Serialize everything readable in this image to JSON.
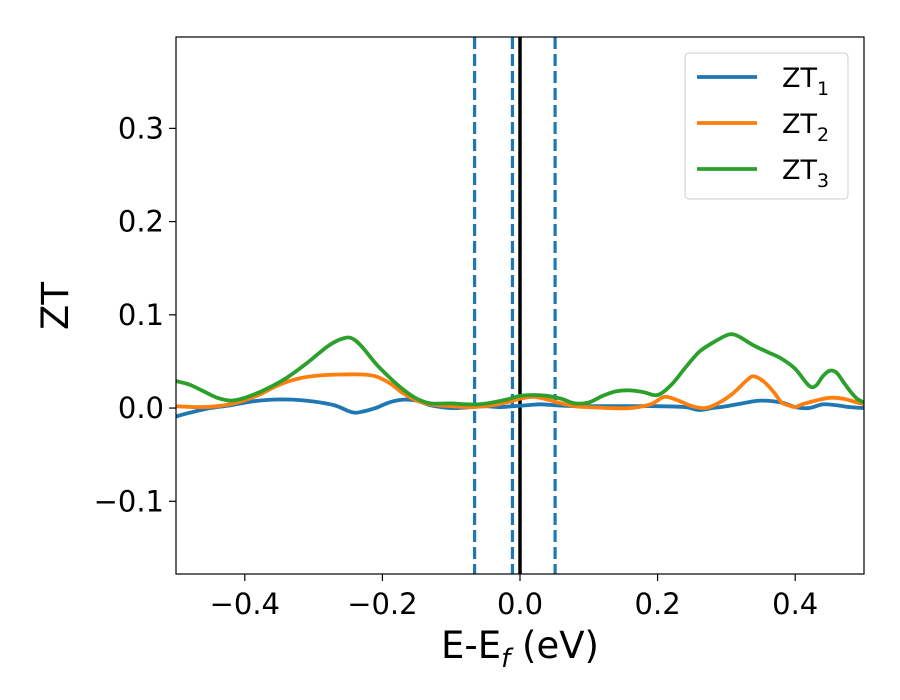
{
  "chart_data": {
    "type": "line",
    "title": "",
    "xlabel": "E-E",
    "xlabel_sub": "f",
    "xlabel_unit": " (eV)",
    "ylabel": "ZT",
    "xlim": [
      -0.5,
      0.5
    ],
    "ylim": [
      -0.178,
      0.398
    ],
    "xticks": [
      -0.4,
      -0.2,
      0.0,
      0.2,
      0.4
    ],
    "xtick_labels": [
      "−0.4",
      "−0.2",
      "0.0",
      "0.2",
      "0.4"
    ],
    "yticks": [
      -0.1,
      0.0,
      0.1,
      0.2,
      0.3
    ],
    "ytick_labels": [
      "−0.1",
      "0.0",
      "0.1",
      "0.2",
      "0.3"
    ],
    "grid": false,
    "legend_position": "top-right",
    "vlines": [
      {
        "x": -0.066,
        "color": "#1f77b4",
        "style": "dashed"
      },
      {
        "x": -0.011,
        "color": "#1f77b4",
        "style": "dashed"
      },
      {
        "x": 0.0,
        "color": "#000000",
        "style": "solid"
      },
      {
        "x": 0.051,
        "color": "#1f77b4",
        "style": "dashed"
      }
    ],
    "series": [
      {
        "name": "ZT",
        "sub": "1",
        "color": "#1f77b4",
        "points": [
          [
            -0.5,
            -0.009
          ],
          [
            -0.48,
            -0.005
          ],
          [
            -0.45,
            0.0
          ],
          [
            -0.42,
            0.003
          ],
          [
            -0.39,
            0.007
          ],
          [
            -0.36,
            0.009
          ],
          [
            -0.33,
            0.009
          ],
          [
            -0.3,
            0.007
          ],
          [
            -0.27,
            0.003
          ],
          [
            -0.25,
            -0.003
          ],
          [
            -0.24,
            -0.005
          ],
          [
            -0.23,
            -0.004
          ],
          [
            -0.21,
            0.0
          ],
          [
            -0.19,
            0.006
          ],
          [
            -0.17,
            0.009
          ],
          [
            -0.15,
            0.008
          ],
          [
            -0.13,
            0.003
          ],
          [
            -0.1,
            0.0
          ],
          [
            -0.07,
            0.001
          ],
          [
            -0.05,
            0.002
          ],
          [
            -0.03,
            0.001
          ],
          [
            -0.01,
            0.002
          ],
          [
            0.01,
            0.003
          ],
          [
            0.03,
            0.004
          ],
          [
            0.05,
            0.003
          ],
          [
            0.08,
            0.002
          ],
          [
            0.1,
            0.002
          ],
          [
            0.15,
            0.002
          ],
          [
            0.2,
            0.002
          ],
          [
            0.24,
            0.001
          ],
          [
            0.26,
            -0.002
          ],
          [
            0.28,
            0.0
          ],
          [
            0.3,
            0.002
          ],
          [
            0.33,
            0.006
          ],
          [
            0.35,
            0.008
          ],
          [
            0.38,
            0.006
          ],
          [
            0.4,
            0.001
          ],
          [
            0.42,
            0.0
          ],
          [
            0.44,
            0.004
          ],
          [
            0.46,
            0.003
          ],
          [
            0.48,
            0.001
          ],
          [
            0.5,
            0.0
          ]
        ]
      },
      {
        "name": "ZT",
        "sub": "2",
        "color": "#ff7f0e",
        "points": [
          [
            -0.5,
            0.002
          ],
          [
            -0.47,
            0.001
          ],
          [
            -0.44,
            0.002
          ],
          [
            -0.41,
            0.006
          ],
          [
            -0.38,
            0.014
          ],
          [
            -0.35,
            0.025
          ],
          [
            -0.32,
            0.032
          ],
          [
            -0.29,
            0.035
          ],
          [
            -0.26,
            0.036
          ],
          [
            -0.23,
            0.036
          ],
          [
            -0.21,
            0.034
          ],
          [
            -0.19,
            0.027
          ],
          [
            -0.17,
            0.016
          ],
          [
            -0.15,
            0.008
          ],
          [
            -0.13,
            0.004
          ],
          [
            -0.1,
            0.002
          ],
          [
            -0.07,
            0.001
          ],
          [
            -0.04,
            0.003
          ],
          [
            -0.02,
            0.006
          ],
          [
            0.0,
            0.01
          ],
          [
            0.02,
            0.012
          ],
          [
            0.04,
            0.009
          ],
          [
            0.06,
            0.005
          ],
          [
            0.08,
            0.002
          ],
          [
            0.1,
            0.001
          ],
          [
            0.13,
            0.0
          ],
          [
            0.16,
            0.0
          ],
          [
            0.19,
            0.004
          ],
          [
            0.21,
            0.012
          ],
          [
            0.23,
            0.008
          ],
          [
            0.25,
            0.002
          ],
          [
            0.27,
            0.0
          ],
          [
            0.29,
            0.006
          ],
          [
            0.31,
            0.016
          ],
          [
            0.33,
            0.03
          ],
          [
            0.34,
            0.034
          ],
          [
            0.355,
            0.028
          ],
          [
            0.37,
            0.016
          ],
          [
            0.38,
            0.006
          ],
          [
            0.39,
            0.003
          ],
          [
            0.4,
            0.001
          ],
          [
            0.41,
            0.004
          ],
          [
            0.43,
            0.008
          ],
          [
            0.45,
            0.011
          ],
          [
            0.47,
            0.01
          ],
          [
            0.49,
            0.006
          ],
          [
            0.5,
            0.004
          ]
        ]
      },
      {
        "name": "ZT",
        "sub": "3",
        "color": "#2ca02c",
        "points": [
          [
            -0.5,
            0.029
          ],
          [
            -0.48,
            0.025
          ],
          [
            -0.46,
            0.018
          ],
          [
            -0.44,
            0.011
          ],
          [
            -0.42,
            0.008
          ],
          [
            -0.4,
            0.011
          ],
          [
            -0.37,
            0.02
          ],
          [
            -0.34,
            0.032
          ],
          [
            -0.31,
            0.048
          ],
          [
            -0.28,
            0.066
          ],
          [
            -0.26,
            0.074
          ],
          [
            -0.245,
            0.075
          ],
          [
            -0.23,
            0.066
          ],
          [
            -0.21,
            0.048
          ],
          [
            -0.19,
            0.033
          ],
          [
            -0.17,
            0.02
          ],
          [
            -0.15,
            0.01
          ],
          [
            -0.13,
            0.005
          ],
          [
            -0.1,
            0.005
          ],
          [
            -0.08,
            0.004
          ],
          [
            -0.06,
            0.004
          ],
          [
            -0.04,
            0.006
          ],
          [
            -0.02,
            0.009
          ],
          [
            0.0,
            0.013
          ],
          [
            0.02,
            0.014
          ],
          [
            0.04,
            0.013
          ],
          [
            0.06,
            0.01
          ],
          [
            0.08,
            0.005
          ],
          [
            0.1,
            0.006
          ],
          [
            0.12,
            0.013
          ],
          [
            0.14,
            0.018
          ],
          [
            0.16,
            0.019
          ],
          [
            0.18,
            0.017
          ],
          [
            0.2,
            0.014
          ],
          [
            0.22,
            0.025
          ],
          [
            0.24,
            0.043
          ],
          [
            0.26,
            0.06
          ],
          [
            0.28,
            0.07
          ],
          [
            0.3,
            0.078
          ],
          [
            0.31,
            0.079
          ],
          [
            0.32,
            0.076
          ],
          [
            0.34,
            0.067
          ],
          [
            0.36,
            0.06
          ],
          [
            0.38,
            0.053
          ],
          [
            0.4,
            0.042
          ],
          [
            0.42,
            0.024
          ],
          [
            0.43,
            0.024
          ],
          [
            0.44,
            0.034
          ],
          [
            0.45,
            0.04
          ],
          [
            0.46,
            0.038
          ],
          [
            0.47,
            0.028
          ],
          [
            0.48,
            0.018
          ],
          [
            0.49,
            0.01
          ],
          [
            0.5,
            0.006
          ]
        ]
      }
    ]
  }
}
